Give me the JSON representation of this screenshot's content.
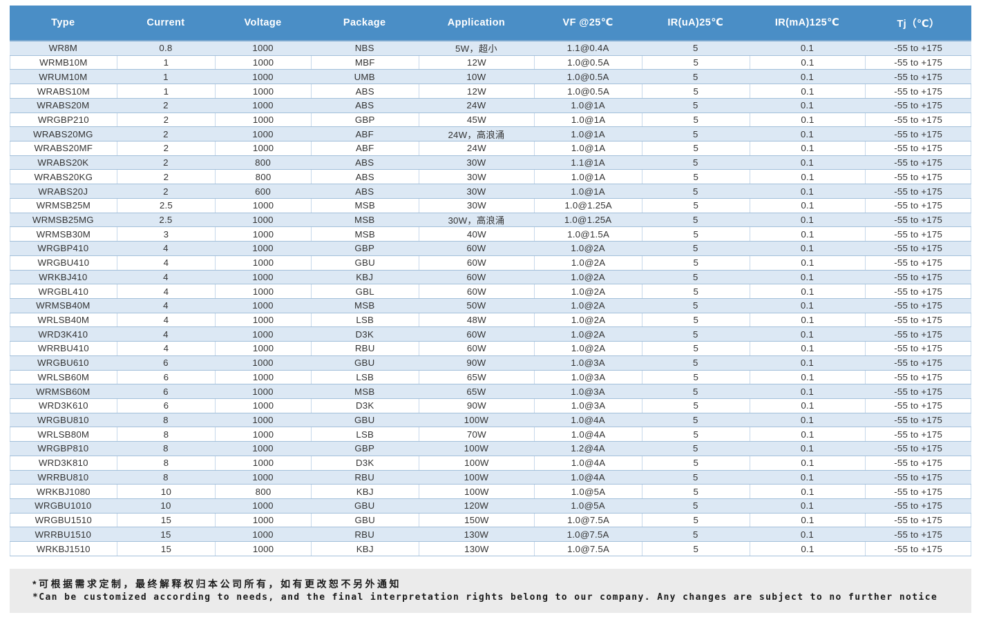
{
  "table": {
    "headers": [
      "Type",
      "Current",
      "Voltage",
      "Package",
      "Application",
      "VF @25℃",
      "IR(uA)25℃",
      "IR(mA)125℃",
      "Tj（℃）"
    ],
    "rows": [
      [
        "WR8M",
        "0.8",
        "1000",
        "NBS",
        "5W，超小",
        "1.1@0.4A",
        "5",
        "0.1",
        "-55 to +175"
      ],
      [
        "WRMB10M",
        "1",
        "1000",
        "MBF",
        "12W",
        "1.0@0.5A",
        "5",
        "0.1",
        "-55 to +175"
      ],
      [
        "WRUM10M",
        "1",
        "1000",
        "UMB",
        "10W",
        "1.0@0.5A",
        "5",
        "0.1",
        "-55 to +175"
      ],
      [
        "WRABS10M",
        "1",
        "1000",
        "ABS",
        "12W",
        "1.0@0.5A",
        "5",
        "0.1",
        "-55 to +175"
      ],
      [
        "WRABS20M",
        "2",
        "1000",
        "ABS",
        "24W",
        "1.0@1A",
        "5",
        "0.1",
        "-55 to +175"
      ],
      [
        "WRGBP210",
        "2",
        "1000",
        "GBP",
        "45W",
        "1.0@1A",
        "5",
        "0.1",
        "-55 to +175"
      ],
      [
        "WRABS20MG",
        "2",
        "1000",
        "ABF",
        "24W，高浪涌",
        "1.0@1A",
        "5",
        "0.1",
        "-55 to +175"
      ],
      [
        "WRABS20MF",
        "2",
        "1000",
        "ABF",
        "24W",
        "1.0@1A",
        "5",
        "0.1",
        "-55 to +175"
      ],
      [
        "WRABS20K",
        "2",
        "800",
        "ABS",
        "30W",
        "1.1@1A",
        "5",
        "0.1",
        "-55 to +175"
      ],
      [
        "WRABS20KG",
        "2",
        "800",
        "ABS",
        "30W",
        "1.0@1A",
        "5",
        "0.1",
        "-55 to +175"
      ],
      [
        "WRABS20J",
        "2",
        "600",
        "ABS",
        "30W",
        "1.0@1A",
        "5",
        "0.1",
        "-55 to +175"
      ],
      [
        "WRMSB25M",
        "2.5",
        "1000",
        "MSB",
        "30W",
        "1.0@1.25A",
        "5",
        "0.1",
        "-55 to +175"
      ],
      [
        "WRMSB25MG",
        "2.5",
        "1000",
        "MSB",
        "30W，高浪涌",
        "1.0@1.25A",
        "5",
        "0.1",
        "-55 to +175"
      ],
      [
        "WRMSB30M",
        "3",
        "1000",
        "MSB",
        "40W",
        "1.0@1.5A",
        "5",
        "0.1",
        "-55 to +175"
      ],
      [
        "WRGBP410",
        "4",
        "1000",
        "GBP",
        "60W",
        "1.0@2A",
        "5",
        "0.1",
        "-55 to +175"
      ],
      [
        "WRGBU410",
        "4",
        "1000",
        "GBU",
        "60W",
        "1.0@2A",
        "5",
        "0.1",
        "-55 to +175"
      ],
      [
        "WRKBJ410",
        "4",
        "1000",
        "KBJ",
        "60W",
        "1.0@2A",
        "5",
        "0.1",
        "-55 to +175"
      ],
      [
        "WRGBL410",
        "4",
        "1000",
        "GBL",
        "60W",
        "1.0@2A",
        "5",
        "0.1",
        "-55 to +175"
      ],
      [
        "WRMSB40M",
        "4",
        "1000",
        "MSB",
        "50W",
        "1.0@2A",
        "5",
        "0.1",
        "-55 to +175"
      ],
      [
        "WRLSB40M",
        "4",
        "1000",
        "LSB",
        "48W",
        "1.0@2A",
        "5",
        "0.1",
        "-55 to +175"
      ],
      [
        "WRD3K410",
        "4",
        "1000",
        "D3K",
        "60W",
        "1.0@2A",
        "5",
        "0.1",
        "-55 to +175"
      ],
      [
        "WRRBU410",
        "4",
        "1000",
        "RBU",
        "60W",
        "1.0@2A",
        "5",
        "0.1",
        "-55 to +175"
      ],
      [
        "WRGBU610",
        "6",
        "1000",
        "GBU",
        "90W",
        "1.0@3A",
        "5",
        "0.1",
        "-55 to +175"
      ],
      [
        "WRLSB60M",
        "6",
        "1000",
        "LSB",
        "65W",
        "1.0@3A",
        "5",
        "0.1",
        "-55 to +175"
      ],
      [
        "WRMSB60M",
        "6",
        "1000",
        "MSB",
        "65W",
        "1.0@3A",
        "5",
        "0.1",
        "-55 to +175"
      ],
      [
        "WRD3K610",
        "6",
        "1000",
        "D3K",
        "90W",
        "1.0@3A",
        "5",
        "0.1",
        "-55 to +175"
      ],
      [
        "WRGBU810",
        "8",
        "1000",
        "GBU",
        "100W",
        "1.0@4A",
        "5",
        "0.1",
        "-55 to +175"
      ],
      [
        "WRLSB80M",
        "8",
        "1000",
        "LSB",
        "70W",
        "1.0@4A",
        "5",
        "0.1",
        "-55 to +175"
      ],
      [
        "WRGBP810",
        "8",
        "1000",
        "GBP",
        "100W",
        "1.2@4A",
        "5",
        "0.1",
        "-55 to +175"
      ],
      [
        "WRD3K810",
        "8",
        "1000",
        "D3K",
        "100W",
        "1.0@4A",
        "5",
        "0.1",
        "-55 to +175"
      ],
      [
        "WRRBU810",
        "8",
        "1000",
        "RBU",
        "100W",
        "1.0@4A",
        "5",
        "0.1",
        "-55 to +175"
      ],
      [
        "WRKBJ1080",
        "10",
        "800",
        "KBJ",
        "100W",
        "1.0@5A",
        "5",
        "0.1",
        "-55 to +175"
      ],
      [
        "WRGBU1010",
        "10",
        "1000",
        "GBU",
        "120W",
        "1.0@5A",
        "5",
        "0.1",
        "-55 to +175"
      ],
      [
        "WRGBU1510",
        "15",
        "1000",
        "GBU",
        "150W",
        "1.0@7.5A",
        "5",
        "0.1",
        "-55 to +175"
      ],
      [
        "WRRBU1510",
        "15",
        "1000",
        "RBU",
        "130W",
        "1.0@7.5A",
        "5",
        "0.1",
        "-55 to +175"
      ],
      [
        "WRKBJ1510",
        "15",
        "1000",
        "KBJ",
        "130W",
        "1.0@7.5A",
        "5",
        "0.1",
        "-55 to +175"
      ]
    ]
  },
  "footnote": {
    "line_zh": "*可根据需求定制，最终解释权归本公司所有，如有更改恕不另外通知",
    "line_en": "*Can be customized according to needs, and the final interpretation rights belong to our company. Any changes are subject to no further notice"
  },
  "colors": {
    "header_bg": "#4a8ec6",
    "stripe_bg": "#dce8f4",
    "row_border": "#a2bfda",
    "cell_border": "#c6d8ea",
    "footnote_bg": "#ebebeb"
  }
}
